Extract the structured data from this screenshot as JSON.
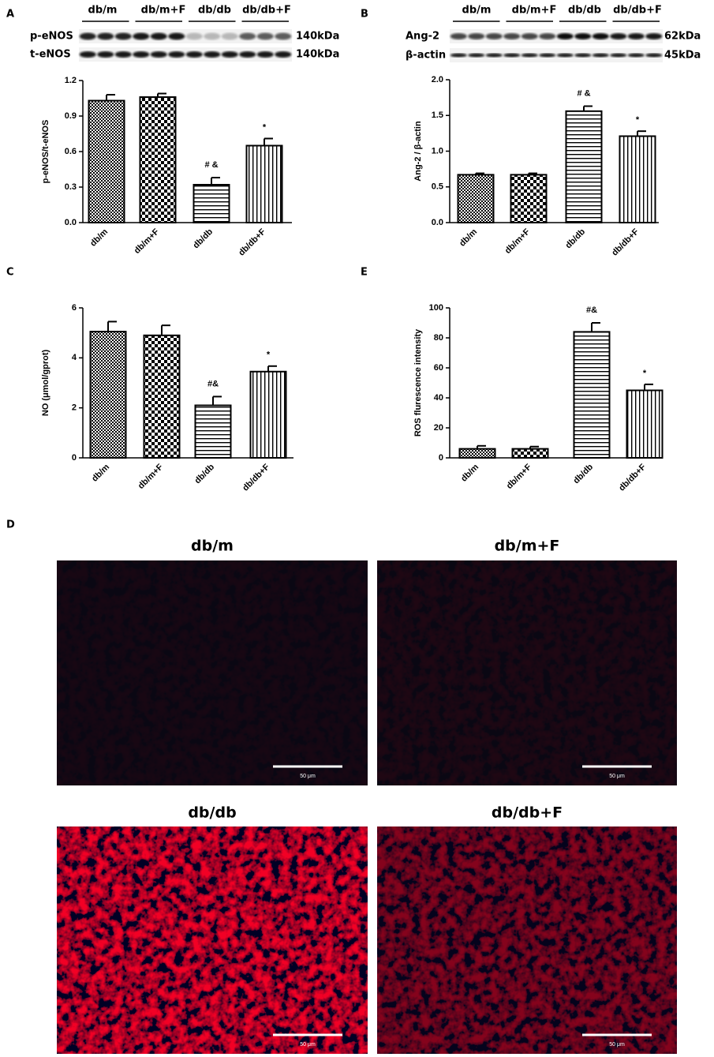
{
  "panel_labels": [
    "A",
    "B",
    "C",
    "E",
    "D"
  ],
  "blots": [
    {
      "groups": [
        "db/m",
        "db/m+F",
        "db/db",
        "db/db+F"
      ],
      "rows": [
        {
          "label": "p-eNOS",
          "size": "140kDa"
        },
        {
          "label": "t-eNOS",
          "size": "140kDa"
        }
      ]
    },
    {
      "groups": [
        "db/m",
        "db/m+F",
        "db/db",
        "db/db+F"
      ],
      "rows": [
        {
          "label": "Ang-2",
          "size": "62kDa"
        },
        {
          "label": "β-actin",
          "size": "45kDa"
        }
      ]
    }
  ],
  "chart_data": [
    {
      "type": "bar",
      "ylabel": "p-eNOS/t-eNOS",
      "categories": [
        "db/m",
        "db/m+F",
        "db/db",
        "db/db+F"
      ],
      "values": [
        1.03,
        1.06,
        0.32,
        0.65
      ],
      "errors": [
        0.05,
        0.03,
        0.06,
        0.06
      ],
      "annotations": [
        null,
        null,
        "# &",
        "*"
      ],
      "color": "#000000",
      "ylim": [
        0,
        1.2
      ],
      "yticks": [
        {
          "value": 0,
          "label": "0.0"
        },
        0.3,
        0.6,
        0.9,
        1.2
      ]
    },
    {
      "type": "bar",
      "ylabel": "Ang-2 / β-actin",
      "categories": [
        "db/m",
        "db/m+F",
        "db/db",
        "db/db+F"
      ],
      "values": [
        0.67,
        0.67,
        1.56,
        1.21
      ],
      "errors": [
        0.02,
        0.02,
        0.07,
        0.07
      ],
      "annotations": [
        null,
        null,
        "# &",
        "*"
      ],
      "color": "#000000",
      "ylim": [
        0,
        2.0
      ],
      "yticks": [
        {
          "value": 0,
          "label": "0.0"
        },
        0.5,
        {
          "value": 1,
          "label": "1.0"
        },
        1.5,
        {
          "value": 2,
          "label": "2.0"
        }
      ]
    },
    {
      "type": "bar",
      "ylabel": "NO (μmol/gprot)",
      "categories": [
        "db/m",
        "db/m+F",
        "db/db",
        "db/db+F"
      ],
      "values": [
        5.05,
        4.9,
        2.1,
        3.45
      ],
      "errors": [
        0.4,
        0.4,
        0.35,
        0.22
      ],
      "annotations": [
        null,
        null,
        "#&",
        "*"
      ],
      "color": "#000000",
      "ylim": [
        0,
        6
      ],
      "yticks": [
        0,
        2,
        4,
        6
      ]
    },
    {
      "type": "bar",
      "ylabel": "ROS flurescence intensity",
      "categories": [
        "db/m",
        "db/m+F",
        "db/db",
        "db/db+F"
      ],
      "values": [
        6,
        6,
        84,
        45
      ],
      "errors": [
        2,
        1.5,
        6,
        4
      ],
      "annotations": [
        null,
        null,
        "#&",
        "*"
      ],
      "color": "#000000",
      "ylim": [
        0,
        100
      ],
      "yticks": [
        0,
        20,
        40,
        60,
        80,
        100
      ]
    }
  ],
  "micrographs": [
    {
      "title": "db/m",
      "scale_bar": "50 μm"
    },
    {
      "title": "db/m+F",
      "scale_bar": "50 μm"
    },
    {
      "title": "db/db",
      "scale_bar": "50 μm"
    },
    {
      "title": "db/db+F",
      "scale_bar": "50 μm"
    }
  ]
}
